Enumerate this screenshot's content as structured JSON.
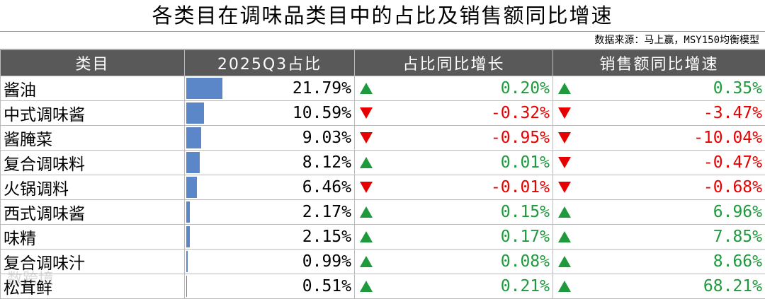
{
  "header": {
    "title": "各类目在调味品类目中的占比及销售额同比增速",
    "source": "数据来源：马上赢，MSY150均衡模型"
  },
  "table": {
    "columns": [
      "类目",
      "2025Q3占比",
      "占比同比增长",
      "销售额同比增速"
    ],
    "rows": [
      [
        "酱油",
        "21.79%",
        "0.20%",
        "0.35%"
      ],
      [
        "中式调味酱",
        "10.59%",
        "-0.32%",
        "-3.47%"
      ],
      [
        "酱腌菜",
        "9.03%",
        "-0.95%",
        "-10.04%"
      ],
      [
        "复合调味料",
        "8.12%",
        "0.01%",
        "-0.47%"
      ],
      [
        "火锅调料",
        "6.46%",
        "-0.01%",
        "-0.68%"
      ],
      [
        "西式调味酱",
        "2.17%",
        "0.15%",
        "6.96%"
      ],
      [
        "味精",
        "2.15%",
        "0.17%",
        "7.85%"
      ],
      [
        "复合调味汁",
        "0.99%",
        "0.08%",
        "8.66%"
      ],
      [
        "松茸鲜",
        "0.51%",
        "0.21%",
        "68.21%"
      ]
    ]
  },
  "watermark": "数跨境"
}
